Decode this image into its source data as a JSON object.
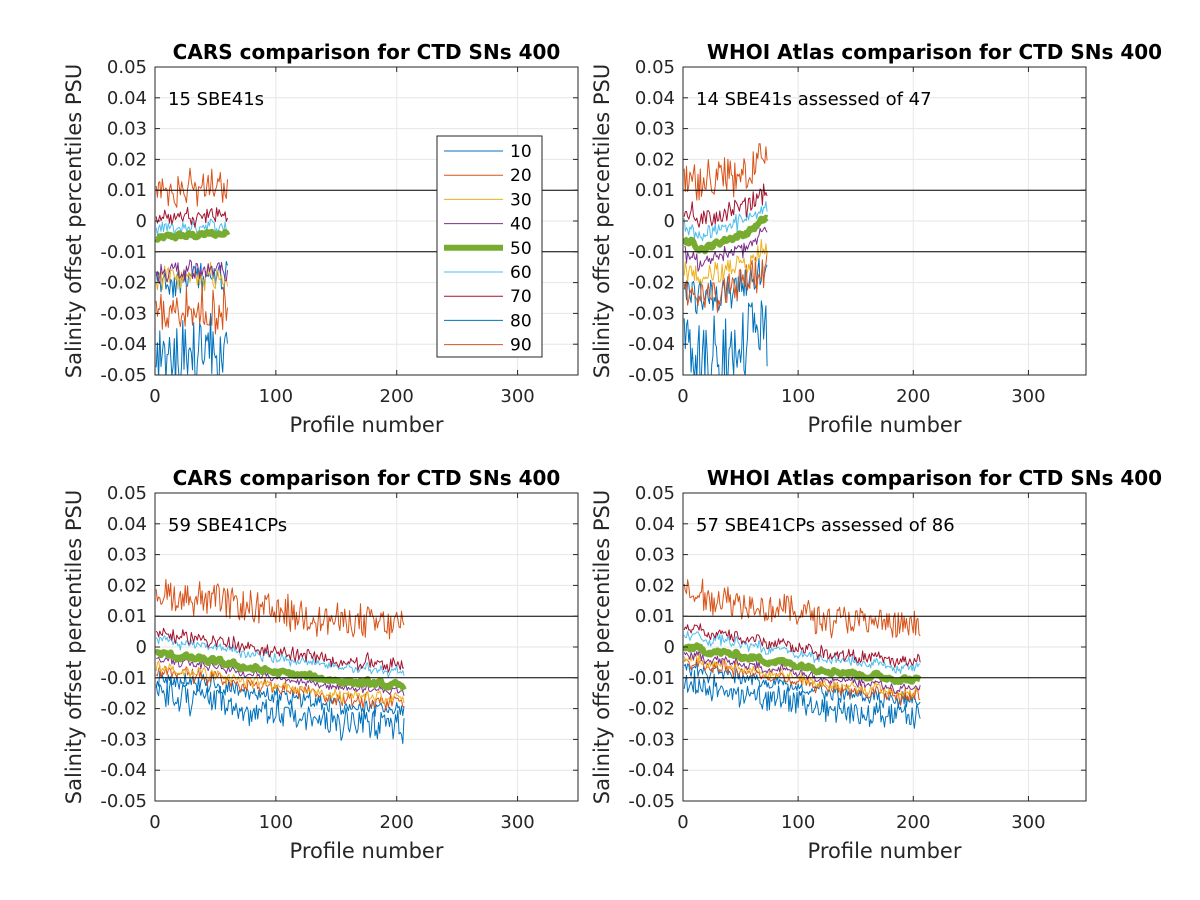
{
  "figure": {
    "type": "matlab-subplots"
  },
  "legend": {
    "placement": "inside-right of top-left panel",
    "entries": [
      {
        "label": "10",
        "color": "#0072BD"
      },
      {
        "label": "20",
        "color": "#D95319"
      },
      {
        "label": "30",
        "color": "#EDB120"
      },
      {
        "label": "40",
        "color": "#7E2F8E"
      },
      {
        "label": "50",
        "color": "#77AC30"
      },
      {
        "label": "60",
        "color": "#4DBEEE"
      },
      {
        "label": "70",
        "color": "#A2142F"
      },
      {
        "label": "80",
        "color": "#0072BD"
      },
      {
        "label": "90",
        "color": "#D95319"
      }
    ]
  },
  "chart_data": [
    {
      "type": "line",
      "title": "CARS comparison for CTD SNs 400",
      "xlabel": "Profile number",
      "ylabel": "Salinity offset percentiles PSU",
      "annotation": "15 SBE41s",
      "xlim": [
        0,
        350
      ],
      "ylim": [
        -0.05,
        0.05
      ],
      "xticks": [
        "0",
        "100",
        "200",
        "300"
      ],
      "yticks": [
        "-0.05",
        "-0.04",
        "-0.03",
        "-0.02",
        "-0.01",
        "0",
        "0.01",
        "0.02",
        "0.03",
        "0.04",
        "0.05"
      ],
      "grid": true,
      "reference_lines": [
        0.01,
        -0.01
      ],
      "n_profiles": 60,
      "percentiles": [
        10,
        20,
        30,
        40,
        50,
        60,
        70,
        80,
        90
      ],
      "medians": [
        -0.006,
        -0.005,
        -0.0047,
        -0.0043,
        -0.004
      ],
      "spreads": [
        0.0145,
        0.025,
        0.0135,
        0.0115,
        0.0115,
        0.0025,
        0.0065,
        0.038,
        0.015
      ]
    },
    {
      "type": "line",
      "title": "WHOI Atlas comparison for CTD SNs 400",
      "xlabel": "Profile number",
      "ylabel": "Salinity offset percentiles PSU",
      "annotation": "14 SBE41s assessed of 47",
      "xlim": [
        0,
        350
      ],
      "ylim": [
        -0.05,
        0.05
      ],
      "xticks": [
        "0",
        "100",
        "200",
        "300"
      ],
      "yticks": [
        "-0.05",
        "-0.04",
        "-0.03",
        "-0.02",
        "-0.01",
        "0",
        "0.01",
        "0.02",
        "0.03",
        "0.04",
        "0.05"
      ],
      "grid": true,
      "reference_lines": [
        0.01,
        -0.01
      ],
      "n_profiles": 73,
      "percentiles": [
        10,
        20,
        30,
        40,
        50,
        60,
        70,
        80,
        90
      ],
      "medians": [
        -0.006,
        -0.009,
        -0.006,
        -0.004,
        0.001
      ],
      "spreads": [
        0.0165,
        0.0155,
        0.0095,
        0.0045,
        0.0055,
        0.0045,
        0.009,
        0.036,
        0.02
      ]
    },
    {
      "type": "line",
      "title": "CARS comparison for CTD SNs 400",
      "xlabel": "Profile number",
      "ylabel": "Salinity offset percentiles PSU",
      "annotation": "59 SBE41CPs",
      "xlim": [
        0,
        350
      ],
      "ylim": [
        -0.05,
        0.05
      ],
      "xticks": [
        "0",
        "100",
        "200",
        "300"
      ],
      "yticks": [
        "-0.05",
        "-0.04",
        "-0.03",
        "-0.02",
        "-0.01",
        "0",
        "0.01",
        "0.02",
        "0.03",
        "0.04",
        "0.05"
      ],
      "grid": true,
      "reference_lines": [
        0.01,
        -0.01
      ],
      "n_profiles": 206,
      "percentiles": [
        10,
        20,
        30,
        40,
        50,
        60,
        70,
        80,
        90
      ],
      "medians": [
        -0.002,
        -0.005,
        -0.0085,
        -0.011,
        -0.013
      ],
      "spreads": [
        0.008,
        0.0055,
        0.0045,
        0.002,
        0.003,
        0.0045,
        0.0065,
        0.0135,
        0.0195
      ]
    },
    {
      "type": "line",
      "title": "WHOI Atlas comparison for CTD SNs 400",
      "xlabel": "Profile number",
      "ylabel": "Salinity offset percentiles PSU",
      "annotation": "57 SBE41CPs assessed of 86",
      "xlim": [
        0,
        350
      ],
      "ylim": [
        -0.05,
        0.05
      ],
      "xticks": [
        "0",
        "100",
        "200",
        "300"
      ],
      "yticks": [
        "-0.05",
        "-0.04",
        "-0.03",
        "-0.02",
        "-0.01",
        "0",
        "0.01",
        "0.02",
        "0.03",
        "0.04",
        "0.05"
      ],
      "grid": true,
      "reference_lines": [
        0.01,
        -0.01
      ],
      "n_profiles": 206,
      "percentiles": [
        10,
        20,
        30,
        40,
        50,
        60,
        70,
        80,
        90
      ],
      "medians": [
        0.0,
        -0.003,
        -0.006,
        -0.009,
        -0.011
      ],
      "spreads": [
        0.007,
        0.005,
        0.004,
        0.0025,
        0.0025,
        0.004,
        0.006,
        0.012,
        0.0175
      ]
    }
  ]
}
